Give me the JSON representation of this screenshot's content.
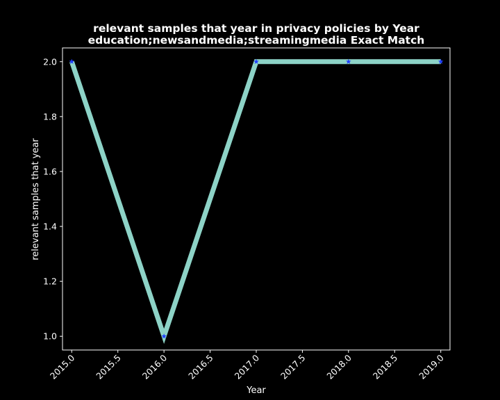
{
  "chart_data": {
    "type": "line",
    "title_line1": "relevant samples that year in privacy policies by Year",
    "title_line2": "education;newsandmedia;streamingmedia Exact Match",
    "xlabel": "Year",
    "ylabel": "relevant samples that year",
    "x": [
      2015,
      2016,
      2017,
      2018,
      2019
    ],
    "values": [
      2.0,
      1.0,
      2.0,
      2.0,
      2.0
    ],
    "xlim": [
      2014.9,
      2019.1
    ],
    "ylim": [
      0.95,
      2.05
    ],
    "xticks": [
      2015.0,
      2015.5,
      2016.0,
      2016.5,
      2017.0,
      2017.5,
      2018.0,
      2018.5,
      2019.0
    ],
    "xtick_labels": [
      "2015.0",
      "2015.5",
      "2016.0",
      "2016.5",
      "2017.0",
      "2017.5",
      "2018.0",
      "2018.5",
      "2019.0"
    ],
    "yticks": [
      1.0,
      1.2,
      1.4,
      1.6,
      1.8,
      2.0
    ],
    "ytick_labels": [
      "1.0",
      "1.2",
      "1.4",
      "1.6",
      "1.8",
      "2.0"
    ],
    "grid": false,
    "colors": {
      "background": "#000000",
      "line": "#8dd3c7",
      "marker": "#1f3fff",
      "text": "#ffffff",
      "axes": "#ffffff"
    }
  }
}
